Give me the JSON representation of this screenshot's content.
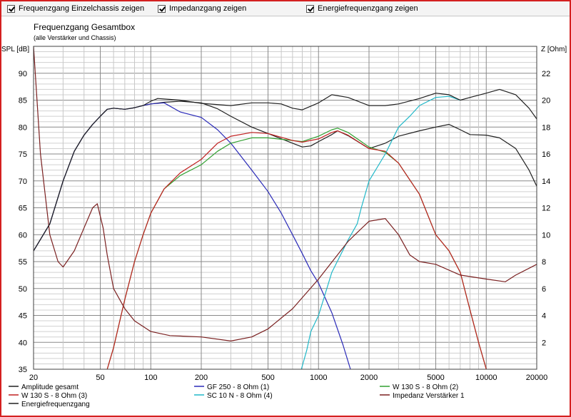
{
  "toolbar": {
    "checkboxes": [
      {
        "label": "Frequenzgang Einzelchassis zeigen",
        "checked": true
      },
      {
        "label": "Impedanzgang zeigen",
        "checked": true
      },
      {
        "label": "Energiefrequenzgang zeigen",
        "checked": true
      }
    ]
  },
  "chart_data": {
    "type": "line",
    "title": "Frequenzgang Gesamtbox",
    "subtitle": "(alle Verstärker und Chassis)",
    "xlabel": "",
    "ylabel": "SPL [dB]",
    "y2label": "Z [Ohm]",
    "xscale": "log",
    "xlim": [
      20,
      20000
    ],
    "ylim": [
      35,
      95
    ],
    "y2lim": [
      0,
      24
    ],
    "x_ticks": [
      20,
      50,
      100,
      200,
      500,
      1000,
      2000,
      5000,
      10000,
      20000
    ],
    "x_tick_labels": [
      "20",
      "50",
      "100",
      "200",
      "500",
      "1000",
      "2000",
      "5000",
      "10000",
      "20000"
    ],
    "y_ticks": [
      35,
      40,
      45,
      50,
      55,
      60,
      65,
      70,
      75,
      80,
      85,
      90
    ],
    "y2_ticks": [
      2,
      4,
      6,
      8,
      10,
      12,
      14,
      16,
      18,
      20,
      22
    ],
    "grid": true,
    "legend_position": "bottom",
    "series": [
      {
        "name": "Amplitude gesamt",
        "axis": "left",
        "color": "#202020",
        "points": [
          [
            20,
            57
          ],
          [
            25,
            62
          ],
          [
            30,
            70
          ],
          [
            35,
            75.5
          ],
          [
            40,
            78.5
          ],
          [
            45,
            80.5
          ],
          [
            50,
            82
          ],
          [
            55,
            83.3
          ],
          [
            60,
            83.5
          ],
          [
            70,
            83.3
          ],
          [
            80,
            83.6
          ],
          [
            90,
            84
          ],
          [
            100,
            84.3
          ],
          [
            120,
            84.6
          ],
          [
            150,
            84.8
          ],
          [
            200,
            84.5
          ],
          [
            250,
            83.4
          ],
          [
            300,
            82
          ],
          [
            400,
            80
          ],
          [
            500,
            78.8
          ],
          [
            700,
            77
          ],
          [
            800,
            76.3
          ],
          [
            900,
            76.5
          ],
          [
            1000,
            77.3
          ],
          [
            1200,
            78.6
          ],
          [
            1300,
            79.3
          ],
          [
            1500,
            78.4
          ],
          [
            2000,
            76
          ],
          [
            2500,
            77
          ],
          [
            3000,
            78.3
          ],
          [
            4000,
            79.3
          ],
          [
            5000,
            80
          ],
          [
            6000,
            80.5
          ],
          [
            7000,
            79.5
          ],
          [
            8000,
            78.6
          ],
          [
            10000,
            78.5
          ],
          [
            12000,
            78
          ],
          [
            15000,
            76
          ],
          [
            18000,
            72
          ],
          [
            20000,
            69
          ]
        ]
      },
      {
        "name": "GF 250 - 8 Ohm (1)",
        "axis": "left",
        "color": "#2a2ab8",
        "points": [
          [
            20,
            57
          ],
          [
            25,
            62
          ],
          [
            30,
            70
          ],
          [
            35,
            75.5
          ],
          [
            40,
            78.5
          ],
          [
            45,
            80.5
          ],
          [
            50,
            82
          ],
          [
            55,
            83.3
          ],
          [
            60,
            83.5
          ],
          [
            70,
            83.3
          ],
          [
            80,
            83.6
          ],
          [
            90,
            84
          ],
          [
            100,
            84.3
          ],
          [
            120,
            84.5
          ],
          [
            150,
            82.8
          ],
          [
            200,
            81.8
          ],
          [
            250,
            79.5
          ],
          [
            300,
            77
          ],
          [
            400,
            72
          ],
          [
            500,
            68
          ],
          [
            600,
            64
          ],
          [
            700,
            60
          ],
          [
            800,
            56.5
          ],
          [
            900,
            53.3
          ],
          [
            1000,
            51
          ],
          [
            1200,
            45.5
          ],
          [
            1400,
            39.5
          ],
          [
            1550,
            35
          ]
        ]
      },
      {
        "name": "W 130 S - 8 Ohm (2)",
        "axis": "left",
        "color": "#30a030",
        "points": [
          [
            55,
            35
          ],
          [
            60,
            39
          ],
          [
            70,
            48
          ],
          [
            80,
            55
          ],
          [
            90,
            60
          ],
          [
            100,
            64
          ],
          [
            120,
            68.5
          ],
          [
            150,
            71
          ],
          [
            200,
            73
          ],
          [
            250,
            75.5
          ],
          [
            300,
            77
          ],
          [
            400,
            78
          ],
          [
            500,
            78
          ],
          [
            700,
            77.5
          ],
          [
            800,
            77.3
          ],
          [
            1000,
            78.3
          ],
          [
            1200,
            79.5
          ],
          [
            1300,
            79.8
          ],
          [
            1500,
            79
          ],
          [
            2000,
            76.3
          ],
          [
            2500,
            75.3
          ],
          [
            3000,
            73.3
          ],
          [
            4000,
            67.5
          ],
          [
            5000,
            60
          ],
          [
            6000,
            57
          ],
          [
            7000,
            53
          ],
          [
            8000,
            46
          ],
          [
            9000,
            40
          ],
          [
            10000,
            35
          ]
        ]
      },
      {
        "name": "W 130 S - 8 Ohm (3)",
        "axis": "left",
        "color": "#c02020",
        "points": [
          [
            55,
            35
          ],
          [
            60,
            39
          ],
          [
            70,
            48
          ],
          [
            80,
            55
          ],
          [
            90,
            60
          ],
          [
            100,
            64
          ],
          [
            120,
            68.5
          ],
          [
            150,
            71.5
          ],
          [
            200,
            74
          ],
          [
            250,
            77
          ],
          [
            300,
            78.3
          ],
          [
            400,
            79
          ],
          [
            500,
            78.8
          ],
          [
            700,
            77.5
          ],
          [
            800,
            77.2
          ],
          [
            1000,
            77.8
          ],
          [
            1200,
            79
          ],
          [
            1300,
            79.3
          ],
          [
            1500,
            78.5
          ],
          [
            2000,
            76
          ],
          [
            2500,
            75.5
          ],
          [
            3000,
            73.3
          ],
          [
            4000,
            67.5
          ],
          [
            5000,
            60
          ],
          [
            6000,
            57
          ],
          [
            7000,
            53
          ],
          [
            8000,
            46
          ],
          [
            9000,
            40
          ],
          [
            10000,
            35
          ]
        ]
      },
      {
        "name": "SC 10 N - 8 Ohm (4)",
        "axis": "left",
        "color": "#20b8c8",
        "points": [
          [
            790,
            35
          ],
          [
            850,
            38.5
          ],
          [
            900,
            42
          ],
          [
            1000,
            45
          ],
          [
            1200,
            53
          ],
          [
            1500,
            59
          ],
          [
            1700,
            62
          ],
          [
            1800,
            65
          ],
          [
            2000,
            70
          ],
          [
            2500,
            75
          ],
          [
            3000,
            80
          ],
          [
            3500,
            82
          ],
          [
            4000,
            84
          ],
          [
            5000,
            85.5
          ],
          [
            6000,
            85.7
          ],
          [
            7000,
            85
          ]
        ]
      },
      {
        "name": "Impedanz Verstärker 1",
        "axis": "right",
        "color": "#7a2020",
        "points": [
          [
            20,
            24
          ],
          [
            22,
            16
          ],
          [
            25,
            10
          ],
          [
            28,
            8
          ],
          [
            30,
            7.6
          ],
          [
            35,
            8.8
          ],
          [
            40,
            10.5
          ],
          [
            45,
            12
          ],
          [
            48,
            12.3
          ],
          [
            52,
            10.5
          ],
          [
            55,
            8.5
          ],
          [
            60,
            6
          ],
          [
            70,
            4.5
          ],
          [
            80,
            3.6
          ],
          [
            100,
            2.8
          ],
          [
            130,
            2.5
          ],
          [
            200,
            2.4
          ],
          [
            300,
            2.1
          ],
          [
            400,
            2.4
          ],
          [
            500,
            3
          ],
          [
            700,
            4.5
          ],
          [
            1000,
            6.7
          ],
          [
            1500,
            9.5
          ],
          [
            2000,
            11
          ],
          [
            2500,
            11.2
          ],
          [
            3000,
            10
          ],
          [
            3500,
            8.5
          ],
          [
            4000,
            8
          ],
          [
            5000,
            7.8
          ],
          [
            7000,
            7
          ],
          [
            10000,
            6.7
          ],
          [
            13000,
            6.5
          ],
          [
            15000,
            7
          ],
          [
            20000,
            7.8
          ]
        ]
      },
      {
        "name": "Energiefrequenzgang",
        "axis": "left",
        "color": "#202020",
        "points": [
          [
            20,
            57
          ],
          [
            25,
            62
          ],
          [
            30,
            70
          ],
          [
            35,
            75.5
          ],
          [
            40,
            78.5
          ],
          [
            45,
            80.5
          ],
          [
            50,
            82
          ],
          [
            55,
            83.3
          ],
          [
            60,
            83.5
          ],
          [
            70,
            83.3
          ],
          [
            80,
            83.6
          ],
          [
            90,
            84
          ],
          [
            100,
            84.8
          ],
          [
            110,
            85.3
          ],
          [
            150,
            85
          ],
          [
            200,
            84.4
          ],
          [
            300,
            84
          ],
          [
            400,
            84.5
          ],
          [
            500,
            84.5
          ],
          [
            600,
            84.3
          ],
          [
            700,
            83.5
          ],
          [
            800,
            83.2
          ],
          [
            1000,
            84.5
          ],
          [
            1200,
            86
          ],
          [
            1500,
            85.5
          ],
          [
            2000,
            84
          ],
          [
            2500,
            84
          ],
          [
            3000,
            84.3
          ],
          [
            4000,
            85.3
          ],
          [
            5000,
            86.3
          ],
          [
            6000,
            86
          ],
          [
            7000,
            85
          ],
          [
            8000,
            85.5
          ],
          [
            10000,
            86.3
          ],
          [
            12000,
            87
          ],
          [
            15000,
            86
          ],
          [
            18000,
            83.5
          ],
          [
            20000,
            81.5
          ]
        ]
      }
    ]
  }
}
